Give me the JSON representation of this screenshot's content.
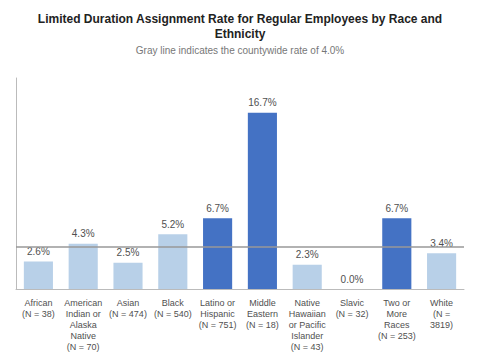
{
  "chart_data": {
    "type": "bar",
    "title": "Limited Duration Assignment Rate for Regular Employees by Race and\nEthnicity",
    "subtitle": "Gray line indicates the countywide rate of 4.0%",
    "categories": [
      "African\n(N = 38)",
      "American\nIndian or\nAlaska\nNative\n(N = 70)",
      "Asian\n(N = 474)",
      "Black\n(N = 540)",
      "Latino or\nHispanic\n(N = 751)",
      "Middle\nEastern\n(N = 18)",
      "Native\nHawaiian\nor Pacific\nIslander\n(N = 43)",
      "Slavic\n(N = 32)",
      "Two or\nMore\nRaces\n(N = 253)",
      "White\n(N =\n3819)"
    ],
    "values": [
      2.6,
      4.3,
      2.5,
      5.2,
      6.7,
      16.7,
      2.3,
      0.0,
      6.7,
      3.4
    ],
    "value_labels": [
      "2.6%",
      "4.3%",
      "2.5%",
      "5.2%",
      "6.7%",
      "16.7%",
      "2.3%",
      "0.0%",
      "6.7%",
      "3.4%"
    ],
    "colors": [
      "#b8d0e8",
      "#b8d0e8",
      "#b8d0e8",
      "#b8d0e8",
      "#4472c4",
      "#4472c4",
      "#b8d0e8",
      "#b8d0e8",
      "#4472c4",
      "#b8d0e8"
    ],
    "reference_line": {
      "value": 4.0,
      "color": "#999999"
    },
    "ylim": [
      0,
      20
    ],
    "data_labels": true,
    "tick_labels": "x",
    "grid": false
  }
}
